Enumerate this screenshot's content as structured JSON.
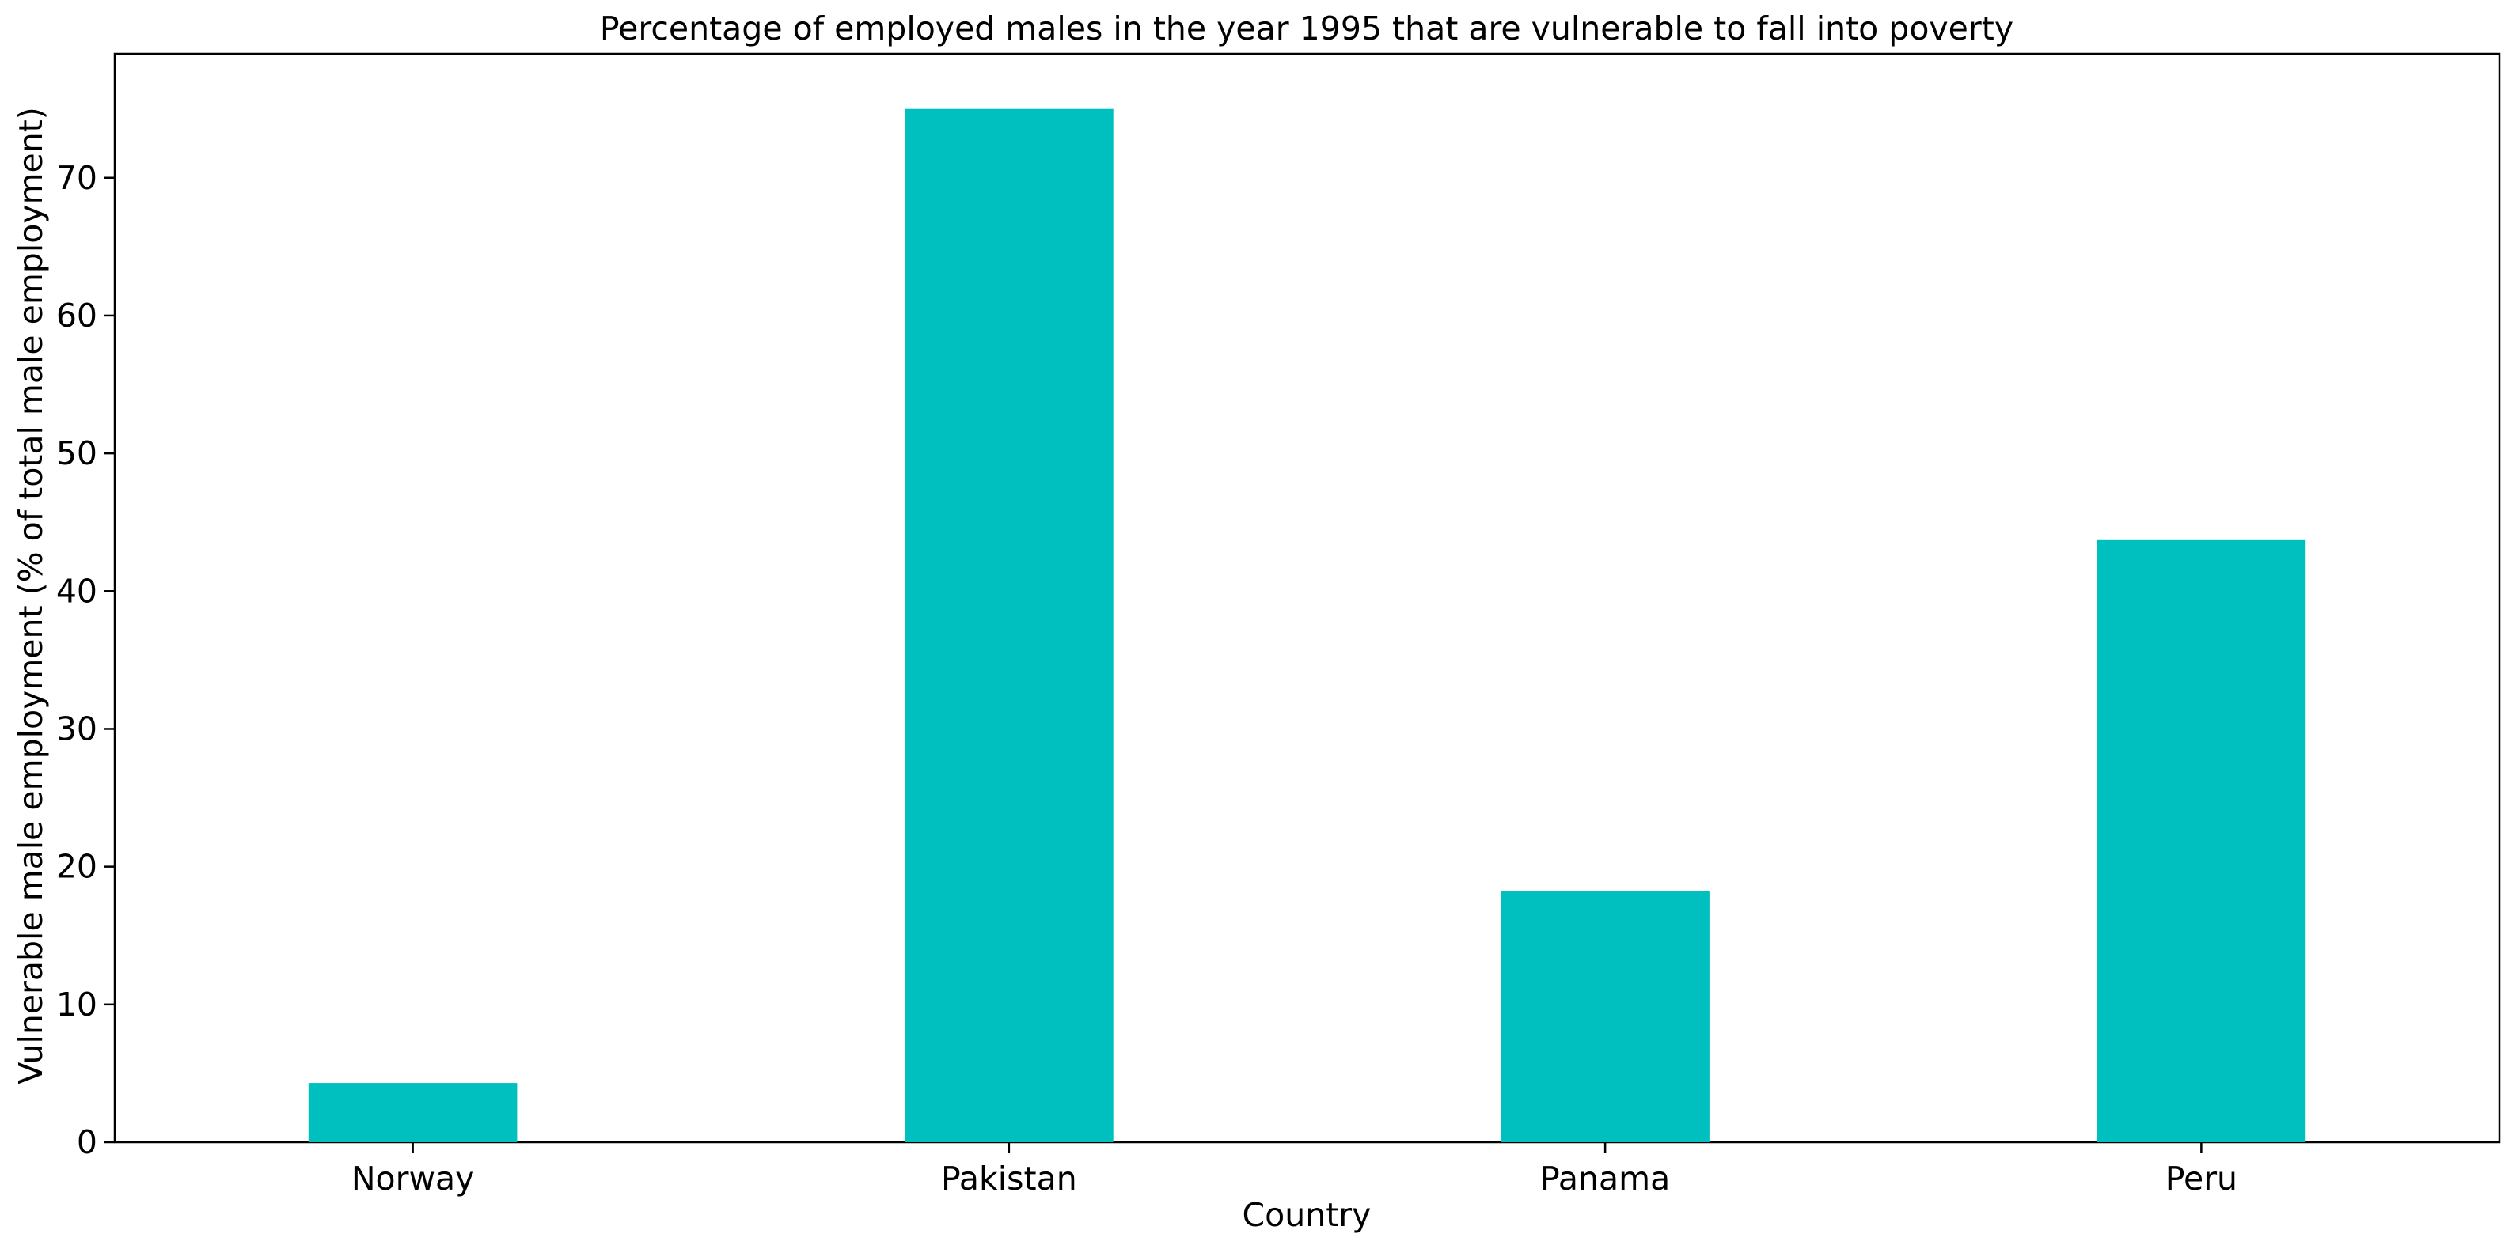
{
  "chart_data": {
    "type": "bar",
    "title": "Percentage of employed males in the year 1995 that are vulnerable to fall into poverty",
    "xlabel": "Country",
    "ylabel": "Vulnerable male employment (% of total male employment)",
    "categories": [
      "Norway",
      "Pakistan",
      "Panama",
      "Peru"
    ],
    "values": [
      4.3,
      75.0,
      18.2,
      43.7
    ],
    "ylim": [
      0,
      79
    ],
    "yticks": [
      0,
      10,
      20,
      30,
      40,
      50,
      60,
      70
    ],
    "grid": false,
    "legend": "none",
    "bar_color": "#00bfbf"
  }
}
